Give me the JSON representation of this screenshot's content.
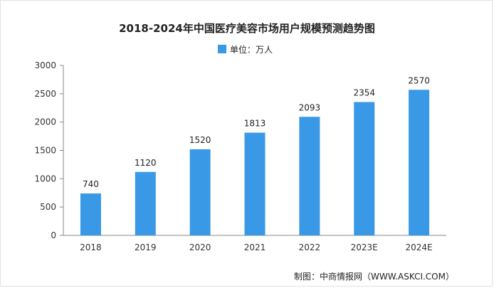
{
  "chart_data": {
    "type": "bar",
    "title": "2018-2024年中国医疗美容市场用户规模预测趋势图",
    "legend": [
      "单位：万人"
    ],
    "categories": [
      "2018",
      "2019",
      "2020",
      "2021",
      "2022",
      "2023E",
      "2024E"
    ],
    "values": [
      740,
      1120,
      1520,
      1813,
      2093,
      2354,
      2570
    ],
    "ylim": [
      0,
      3000
    ],
    "yticks": [
      0,
      500,
      1000,
      1500,
      2000,
      2500,
      3000
    ],
    "bar_color": "#3a99e6",
    "grid": false
  },
  "source": "制图：中商情报网（WWW.ASKCI.COM）"
}
